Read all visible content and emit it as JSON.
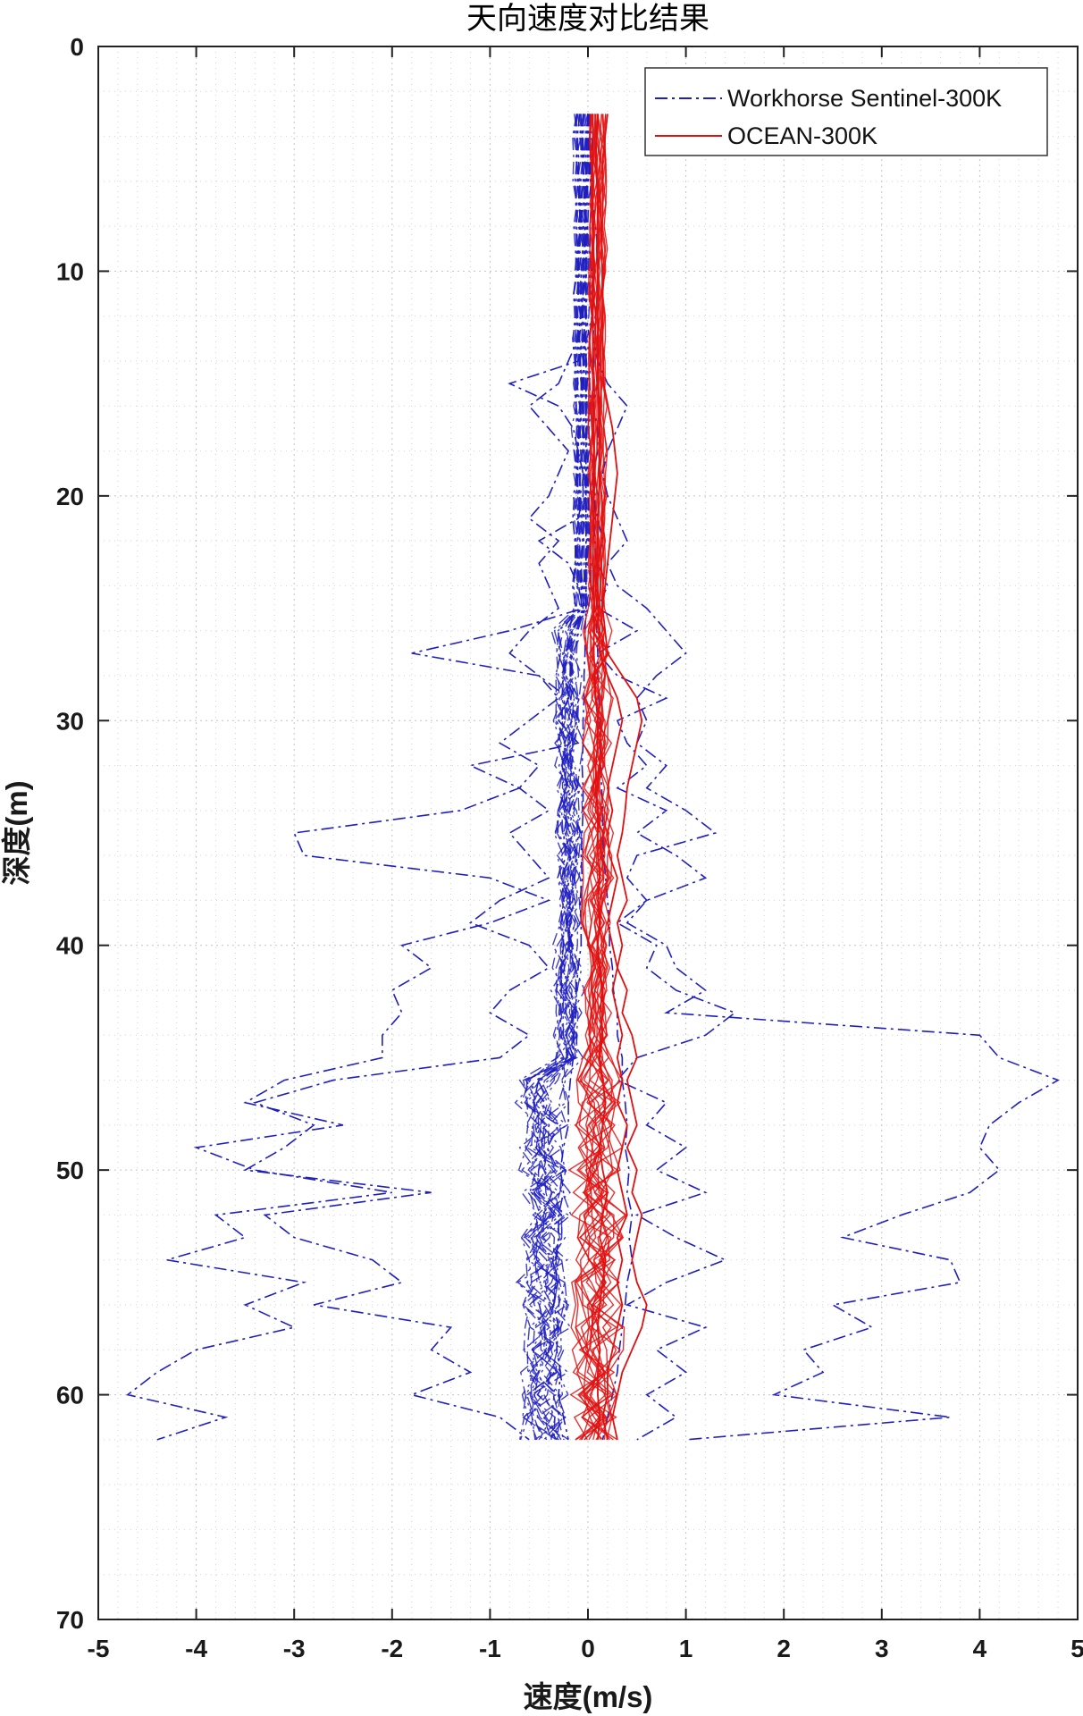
{
  "chart_data": {
    "type": "line",
    "title": "天向速度对比结果",
    "xlabel": "速度(m/s)",
    "ylabel": "深度(m)",
    "xlim": [
      -5,
      5
    ],
    "ylim": [
      0,
      70
    ],
    "y_reversed": true,
    "x_ticks": [
      "-5",
      "-4",
      "-3",
      "-2",
      "-1",
      "0",
      "1",
      "2",
      "3",
      "4",
      "5"
    ],
    "y_ticks": [
      "0",
      "10",
      "20",
      "30",
      "40",
      "50",
      "60",
      "70"
    ],
    "grid": true,
    "minor_grid": true,
    "legend_position": "top-right",
    "series": [
      {
        "name": "Workhorse Sentinel-300K",
        "color": "#1f1fbf",
        "line_style": "dash-dot",
        "depth": [
          3,
          5,
          7,
          9,
          11,
          13,
          14,
          15,
          16,
          17,
          18,
          19,
          20,
          21,
          22,
          23,
          24,
          25,
          26,
          27,
          28,
          29,
          30,
          31,
          32,
          33,
          34,
          35,
          36,
          37,
          38,
          39,
          40,
          41,
          42,
          43,
          44,
          45,
          46,
          47,
          48,
          49,
          50,
          51,
          52,
          53,
          54,
          55,
          56,
          57,
          58,
          59,
          60,
          61,
          62
        ],
        "profiles": [
          [
            -0.05,
            -0.05,
            -0.03,
            -0.03,
            -0.02,
            -0.02,
            -0.02,
            -0.02,
            -0.02,
            -0.02,
            -0.02,
            -0.02,
            -0.02,
            -0.02,
            -0.02,
            -0.02,
            -0.02,
            -0.02,
            -0.03,
            -0.03,
            -0.04,
            -0.04,
            -0.05,
            -0.05,
            -0.06,
            -0.05,
            -0.05,
            -0.06,
            -0.07,
            -0.06,
            -0.08,
            -0.07,
            -0.07,
            -0.1,
            -0.12,
            -0.12,
            -0.15,
            -0.15,
            -0.18,
            -0.2,
            -0.2,
            -0.25,
            -0.28,
            -0.25,
            -0.3,
            -0.3,
            -0.33,
            -0.32,
            -0.35,
            -0.3,
            -0.32,
            -0.28,
            -0.3,
            -0.25,
            -0.2
          ],
          [
            0.05,
            0.04,
            0.05,
            0.05,
            0.05,
            0.05,
            0.06,
            0.06,
            0.06,
            0.06,
            0.06,
            0.07,
            0.07,
            0.07,
            0.07,
            0.08,
            0.08,
            0.09,
            0.09,
            0.1,
            0.1,
            0.11,
            0.12,
            0.12,
            0.13,
            0.14,
            0.15,
            0.15,
            0.16,
            0.18,
            0.2,
            0.22,
            0.22,
            0.25,
            0.26,
            0.3,
            0.3,
            0.35,
            0.35,
            0.38,
            0.4,
            0.38,
            0.42,
            0.4,
            0.45,
            0.42,
            0.45,
            0.4,
            0.38,
            0.35,
            0.32,
            0.3,
            0.25,
            0.2,
            0.15
          ],
          [
            0,
            0,
            -0.05,
            -0.1,
            -0.1,
            -0.05,
            -0.1,
            -0.8,
            -0.3,
            -0.15,
            -0.1,
            -0.05,
            -0.05,
            -0.1,
            -0.5,
            -0.2,
            -0.1,
            -0.05,
            -0.8,
            -1.8,
            -0.5,
            -0.2,
            -0.3,
            -0.1,
            -1.2,
            -0.7,
            -1.3,
            -3.0,
            -2.9,
            -1.0,
            -0.4,
            -1.0,
            -1.9,
            -1.6,
            -2.0,
            -1.9,
            -2.1,
            -2.1,
            -3.1,
            -3.5,
            -2.5,
            -4.0,
            -3.4,
            -2.0,
            -3.8,
            -3.5,
            -4.3,
            -2.9,
            -3.5,
            -3.0,
            -4.0,
            -4.4,
            -4.7,
            -3.7,
            -4.4
          ],
          [
            0,
            0,
            0.05,
            0.1,
            0.1,
            0.05,
            0.1,
            0.1,
            0.05,
            0.1,
            0.1,
            0.05,
            0.05,
            0.1,
            0.15,
            0.1,
            0.2,
            0.1,
            0.5,
            0.1,
            0.3,
            0.8,
            0.3,
            0.4,
            0.6,
            0.3,
            0.8,
            0.5,
            0.9,
            1.2,
            0.6,
            0.4,
            0.8,
            0.9,
            1.2,
            0.8,
            4.0,
            4.2,
            4.8,
            4.4,
            4.1,
            4.0,
            4.2,
            3.9,
            3.2,
            2.6,
            3.7,
            3.8,
            2.5,
            2.9,
            2.2,
            2.4,
            1.9,
            3.7,
            1.0
          ],
          [
            0,
            0.02,
            0.03,
            0.02,
            0.05,
            0.05,
            0.1,
            0.2,
            0.4,
            0.3,
            0.2,
            0.15,
            0.2,
            0.3,
            0.4,
            0.2,
            0.3,
            0.6,
            0.8,
            1.0,
            0.7,
            0.5,
            0.6,
            0.5,
            0.8,
            0.6,
            1.0,
            1.3,
            0.5,
            0.4,
            0.6,
            0.3,
            0.7,
            0.6,
            0.9,
            1.5,
            1.2,
            0.5,
            0.3,
            0.8,
            0.6,
            1.0,
            0.7,
            1.2,
            0.5,
            0.9,
            1.4,
            0.8,
            0.4,
            1.2,
            0.7,
            1.0,
            0.6,
            0.9,
            0.5
          ],
          [
            0,
            -0.02,
            -0.03,
            -0.04,
            -0.05,
            -0.1,
            -0.2,
            -0.3,
            -0.6,
            -0.4,
            -0.2,
            -0.3,
            -0.4,
            -0.6,
            -0.3,
            -0.5,
            -0.4,
            -0.3,
            -0.6,
            -0.8,
            -0.5,
            -0.3,
            -0.6,
            -0.9,
            -0.5,
            -0.7,
            -0.4,
            -0.8,
            -0.6,
            -0.4,
            -0.9,
            -1.2,
            -0.6,
            -0.4,
            -0.8,
            -1.0,
            -0.6,
            -0.9,
            -2.6,
            -3.4,
            -2.8,
            -3.1,
            -3.5,
            -1.6,
            -3.3,
            -3.0,
            -2.2,
            -1.9,
            -2.8,
            -1.4,
            -1.6,
            -1.2,
            -1.8,
            -0.9,
            -0.6
          ]
        ]
      },
      {
        "name": "OCEAN-300K",
        "color": "#e01010",
        "line_style": "solid",
        "depth": [
          3,
          5,
          7,
          9,
          11,
          13,
          15,
          17,
          19,
          21,
          23,
          25,
          27,
          28,
          29,
          30,
          31,
          32,
          33,
          34,
          35,
          36,
          37,
          38,
          39,
          40,
          41,
          42,
          43,
          44,
          45,
          46,
          47,
          48,
          49,
          50,
          51,
          52,
          53,
          54,
          55,
          56,
          57,
          58,
          59,
          60,
          61,
          62
        ],
        "profiles": [
          [
            0.2,
            0.15,
            0.15,
            0.14,
            0.15,
            0.15,
            0.16,
            0.25,
            0.3,
            0.25,
            0.2,
            0.15,
            0.2,
            0.35,
            0.5,
            0.55,
            0.5,
            0.45,
            0.4,
            0.38,
            0.35,
            0.3,
            0.35,
            0.4,
            0.3,
            0.35,
            0.3,
            0.4,
            0.35,
            0.45,
            0.5,
            0.4,
            0.45,
            0.5,
            0.4,
            0.5,
            0.45,
            0.55,
            0.5,
            0.45,
            0.5,
            0.6,
            0.55,
            0.45,
            0.35,
            0.3,
            0.25,
            0.3
          ],
          [
            0.1,
            0.08,
            0.1,
            0.09,
            0.1,
            0.1,
            0.1,
            0.12,
            0.12,
            0.1,
            0.1,
            0.1,
            0.12,
            0.2,
            0.3,
            0.35,
            0.3,
            0.25,
            0.2,
            0.25,
            0.2,
            0.22,
            0.3,
            0.25,
            0.2,
            0.25,
            0.3,
            0.25,
            0.3,
            0.35,
            0.3,
            0.35,
            0.3,
            0.4,
            0.35,
            0.3,
            0.35,
            0.4,
            0.3,
            0.35,
            0.3,
            0.35,
            0.3,
            0.25,
            0.2,
            0.2,
            0.15,
            0.2
          ],
          [
            0.05,
            0.05,
            0.05,
            0.05,
            0.05,
            0.05,
            0.05,
            0.06,
            0.06,
            0.06,
            0.05,
            0.06,
            0.06,
            0.07,
            0.08,
            0.1,
            0.1,
            0.08,
            0.08,
            0.1,
            0.1,
            0.1,
            0.12,
            0.1,
            0.12,
            0.1,
            0.12,
            0.15,
            0.12,
            0.15,
            0.12,
            0.15,
            0.18,
            0.15,
            0.12,
            0.15,
            0.2,
            0.15,
            0.12,
            0.18,
            0.15,
            0.12,
            0.1,
            0.12,
            0.1,
            0.1,
            0.12,
            0.1
          ]
        ]
      }
    ]
  }
}
